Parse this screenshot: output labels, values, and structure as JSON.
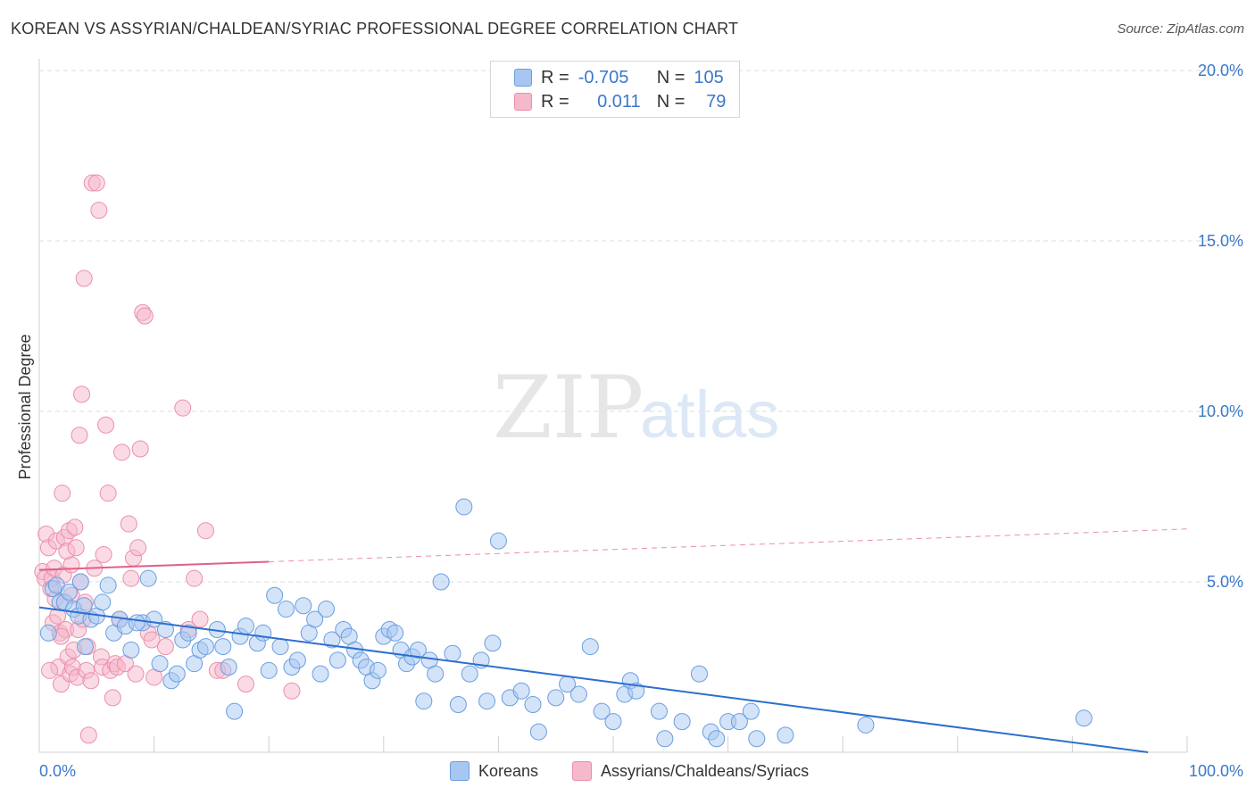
{
  "header": {
    "title": "KOREAN VS ASSYRIAN/CHALDEAN/SYRIAC PROFESSIONAL DEGREE CORRELATION CHART",
    "source": "Source: ZipAtlas.com"
  },
  "watermark": {
    "zip": "ZIP",
    "atlas": "atlas"
  },
  "legend": {
    "rows": [
      {
        "r_label": "R =",
        "r_value": "-0.705",
        "n_label": "N =",
        "n_value": "105"
      },
      {
        "r_label": "R =",
        "r_value": "0.011",
        "n_label": "N =",
        "n_value": "79"
      }
    ]
  },
  "bottom_legend": {
    "series1": "Koreans",
    "series2": "Assyrians/Chaldeans/Syriacs"
  },
  "colors": {
    "blue_fill": "#a7c7f2",
    "blue_stroke": "#6a9ee0",
    "blue_line": "#2d6fcf",
    "pink_fill": "#f6b8cb",
    "pink_stroke": "#ea8fab",
    "pink_line": "#e0608a",
    "axis_label": "#3a78c9",
    "grid": "#dcdcdc"
  },
  "chart_data": {
    "type": "scatter",
    "title": "KOREAN VS ASSYRIAN/CHALDEAN/SYRIAC PROFESSIONAL DEGREE CORRELATION CHART",
    "xlabel": "",
    "ylabel": "Professional Degree",
    "xlim": [
      0,
      100
    ],
    "ylim": [
      0,
      20
    ],
    "x_tick_labels": [
      "0.0%",
      "100.0%"
    ],
    "y_ticks": [
      5,
      10,
      15,
      20
    ],
    "y_tick_labels": [
      "5.0%",
      "10.0%",
      "15.0%",
      "20.0%"
    ],
    "grid": true,
    "legend_position": "top-center",
    "series": [
      {
        "name": "Koreans",
        "r": -0.705,
        "n": 105,
        "trend": {
          "x": [
            0,
            100
          ],
          "y": [
            4.25,
            -0.15
          ],
          "x_end_solid": 100
        },
        "points": [
          [
            0.8,
            3.5
          ],
          [
            1.2,
            4.8
          ],
          [
            1.5,
            4.9
          ],
          [
            1.8,
            4.4
          ],
          [
            2.2,
            4.4
          ],
          [
            2.6,
            4.7
          ],
          [
            3.0,
            4.2
          ],
          [
            3.4,
            4.0
          ],
          [
            3.6,
            5.0
          ],
          [
            3.9,
            4.3
          ],
          [
            4.5,
            3.9
          ],
          [
            5.0,
            4.0
          ],
          [
            5.5,
            4.4
          ],
          [
            6.0,
            4.9
          ],
          [
            6.5,
            3.5
          ],
          [
            7.0,
            3.9
          ],
          [
            7.5,
            3.7
          ],
          [
            8.0,
            3.0
          ],
          [
            9.0,
            3.8
          ],
          [
            9.5,
            5.1
          ],
          [
            10.0,
            3.9
          ],
          [
            10.5,
            2.6
          ],
          [
            11.0,
            3.6
          ],
          [
            11.5,
            2.1
          ],
          [
            12.0,
            2.3
          ],
          [
            12.5,
            3.3
          ],
          [
            13.0,
            3.5
          ],
          [
            13.5,
            2.6
          ],
          [
            14.0,
            3.0
          ],
          [
            14.5,
            3.1
          ],
          [
            15.5,
            3.6
          ],
          [
            16.0,
            3.1
          ],
          [
            16.5,
            2.5
          ],
          [
            17.0,
            1.2
          ],
          [
            17.5,
            3.4
          ],
          [
            18.0,
            3.7
          ],
          [
            19.0,
            3.2
          ],
          [
            19.5,
            3.5
          ],
          [
            20.0,
            2.4
          ],
          [
            20.5,
            4.6
          ],
          [
            21.0,
            3.1
          ],
          [
            21.5,
            4.2
          ],
          [
            22.0,
            2.5
          ],
          [
            22.5,
            2.7
          ],
          [
            23.0,
            4.3
          ],
          [
            23.5,
            3.5
          ],
          [
            24.0,
            3.9
          ],
          [
            24.5,
            2.3
          ],
          [
            25.0,
            4.2
          ],
          [
            25.5,
            3.3
          ],
          [
            26.0,
            2.7
          ],
          [
            26.5,
            3.6
          ],
          [
            27.0,
            3.4
          ],
          [
            27.5,
            3.0
          ],
          [
            28.0,
            2.7
          ],
          [
            28.5,
            2.5
          ],
          [
            29.0,
            2.1
          ],
          [
            29.5,
            2.4
          ],
          [
            30.0,
            3.4
          ],
          [
            30.5,
            3.6
          ],
          [
            31.0,
            3.5
          ],
          [
            31.5,
            3.0
          ],
          [
            32.0,
            2.6
          ],
          [
            32.5,
            2.8
          ],
          [
            33.0,
            3.0
          ],
          [
            33.5,
            1.5
          ],
          [
            34.0,
            2.7
          ],
          [
            34.5,
            2.3
          ],
          [
            35.0,
            5.0
          ],
          [
            36.0,
            2.9
          ],
          [
            36.5,
            1.4
          ],
          [
            37.0,
            7.2
          ],
          [
            37.5,
            2.3
          ],
          [
            38.5,
            2.7
          ],
          [
            39.0,
            1.5
          ],
          [
            39.5,
            3.2
          ],
          [
            40.0,
            6.2
          ],
          [
            41.0,
            1.6
          ],
          [
            42.0,
            1.8
          ],
          [
            43.0,
            1.4
          ],
          [
            43.5,
            0.6
          ],
          [
            45.0,
            1.6
          ],
          [
            46.0,
            2.0
          ],
          [
            47.0,
            1.7
          ],
          [
            48.0,
            3.1
          ],
          [
            49.0,
            1.2
          ],
          [
            50.0,
            0.9
          ],
          [
            51.0,
            1.7
          ],
          [
            51.5,
            2.1
          ],
          [
            52.0,
            1.8
          ],
          [
            54.0,
            1.2
          ],
          [
            54.5,
            0.4
          ],
          [
            56.0,
            0.9
          ],
          [
            57.5,
            2.3
          ],
          [
            58.5,
            0.6
          ],
          [
            59.0,
            0.4
          ],
          [
            60.0,
            0.9
          ],
          [
            61.0,
            0.9
          ],
          [
            62.0,
            1.2
          ],
          [
            62.5,
            0.4
          ],
          [
            65.0,
            0.5
          ],
          [
            72.0,
            0.8
          ],
          [
            91.0,
            1.0
          ],
          [
            8.5,
            3.8
          ],
          [
            4.0,
            3.1
          ]
        ]
      },
      {
        "name": "Assyrians/Chaldeans/Syriacs",
        "r": 0.011,
        "n": 79,
        "trend": {
          "x": [
            0,
            100
          ],
          "y": [
            5.35,
            6.55
          ],
          "x_end_solid": 20
        },
        "points": [
          [
            0.3,
            5.3
          ],
          [
            0.5,
            5.1
          ],
          [
            0.6,
            6.4
          ],
          [
            0.8,
            6.0
          ],
          [
            1.0,
            4.8
          ],
          [
            1.1,
            5.1
          ],
          [
            1.2,
            3.8
          ],
          [
            1.3,
            5.4
          ],
          [
            1.4,
            4.5
          ],
          [
            1.5,
            6.2
          ],
          [
            1.6,
            4.0
          ],
          [
            1.7,
            2.5
          ],
          [
            1.8,
            3.5
          ],
          [
            1.9,
            2.0
          ],
          [
            2.0,
            7.6
          ],
          [
            2.1,
            5.2
          ],
          [
            2.2,
            6.3
          ],
          [
            2.3,
            3.6
          ],
          [
            2.4,
            5.9
          ],
          [
            2.5,
            2.8
          ],
          [
            2.6,
            6.5
          ],
          [
            2.7,
            2.3
          ],
          [
            2.8,
            4.6
          ],
          [
            2.9,
            2.5
          ],
          [
            3.0,
            3.0
          ],
          [
            3.1,
            6.6
          ],
          [
            3.2,
            6.0
          ],
          [
            3.3,
            2.2
          ],
          [
            3.4,
            3.6
          ],
          [
            3.5,
            9.3
          ],
          [
            3.6,
            5.0
          ],
          [
            3.7,
            10.5
          ],
          [
            3.8,
            3.9
          ],
          [
            3.9,
            13.9
          ],
          [
            4.0,
            4.4
          ],
          [
            4.1,
            2.4
          ],
          [
            4.2,
            3.1
          ],
          [
            4.3,
            0.5
          ],
          [
            4.5,
            2.1
          ],
          [
            4.6,
            16.7
          ],
          [
            4.8,
            5.4
          ],
          [
            5.0,
            16.7
          ],
          [
            5.2,
            15.9
          ],
          [
            5.4,
            2.8
          ],
          [
            5.5,
            2.5
          ],
          [
            5.6,
            5.8
          ],
          [
            5.8,
            9.6
          ],
          [
            6.0,
            7.6
          ],
          [
            6.2,
            2.4
          ],
          [
            6.4,
            1.6
          ],
          [
            6.6,
            2.6
          ],
          [
            6.8,
            2.5
          ],
          [
            7.0,
            3.9
          ],
          [
            7.2,
            8.8
          ],
          [
            7.5,
            2.6
          ],
          [
            7.8,
            6.7
          ],
          [
            8.0,
            5.1
          ],
          [
            8.2,
            5.7
          ],
          [
            8.4,
            2.3
          ],
          [
            8.6,
            6.0
          ],
          [
            8.8,
            8.9
          ],
          [
            9.0,
            12.9
          ],
          [
            9.2,
            12.8
          ],
          [
            9.5,
            3.5
          ],
          [
            9.8,
            3.3
          ],
          [
            10.0,
            2.2
          ],
          [
            11.0,
            3.1
          ],
          [
            12.5,
            10.1
          ],
          [
            13.0,
            3.6
          ],
          [
            13.5,
            5.1
          ],
          [
            14.0,
            3.9
          ],
          [
            14.5,
            6.5
          ],
          [
            15.5,
            2.4
          ],
          [
            16.0,
            2.4
          ],
          [
            18.0,
            2.0
          ],
          [
            22.0,
            1.8
          ],
          [
            1.9,
            3.4
          ],
          [
            2.8,
            5.5
          ],
          [
            0.9,
            2.4
          ]
        ]
      }
    ]
  }
}
